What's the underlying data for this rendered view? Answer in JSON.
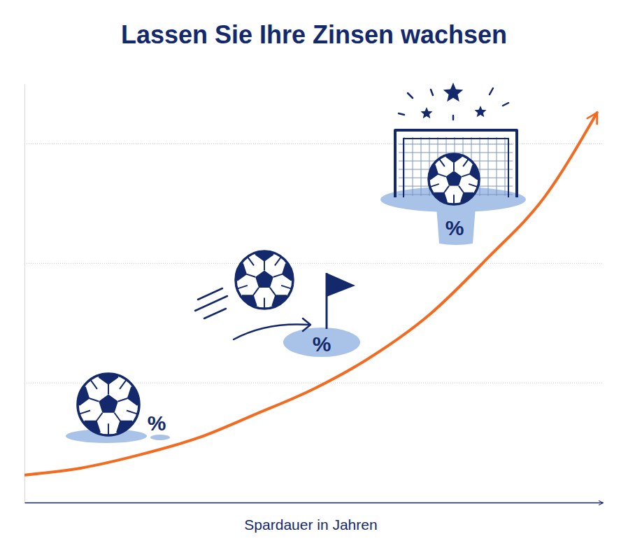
{
  "chart_data": {
    "type": "line",
    "title": "Lassen Sie Ihre Zinsen wachsen",
    "x_label": "Spardauer in Jahren",
    "x": [
      0,
      1,
      2,
      3,
      4,
      5,
      6,
      7,
      8,
      9,
      9.9
    ],
    "values": [
      0.23,
      0.29,
      0.4,
      0.54,
      0.74,
      0.95,
      1.22,
      1.57,
      2.04,
      2.56,
      3.26
    ],
    "xlim": [
      0,
      10
    ],
    "ylim": [
      0,
      3.5
    ],
    "yticks": [
      1,
      2,
      3
    ],
    "grid": true,
    "tick_labels": false,
    "color": "#f26b21",
    "annotations": [
      "%",
      "%",
      "%"
    ]
  }
}
